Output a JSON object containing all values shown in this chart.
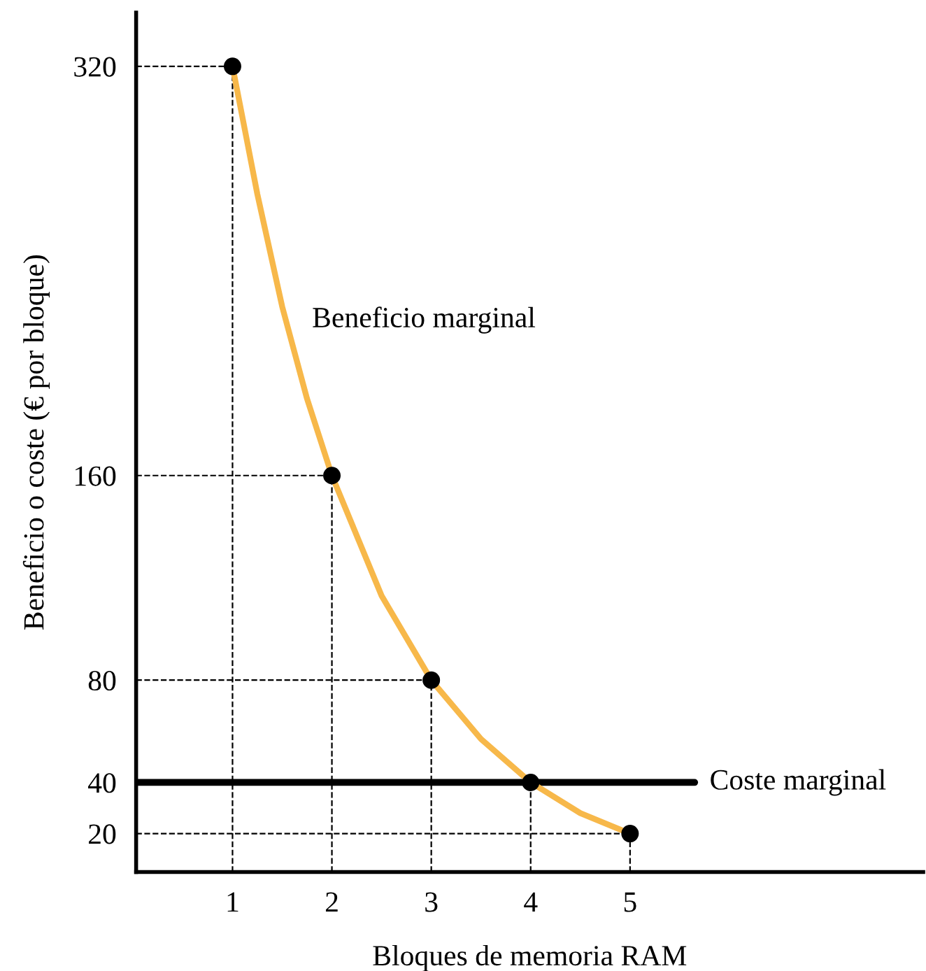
{
  "chart_data": {
    "type": "line",
    "xlabel": "Bloques de memoria RAM",
    "ylabel": "Beneficio o coste (€ por bloque)",
    "x": [
      1,
      2,
      3,
      4,
      5
    ],
    "series": [
      {
        "color": "#000000",
        "x": [
          0.03,
          1
        ],
        "values": [
          320,
          320
        ],
        "line_style": "dashed"
      },
      {
        "color": "#000000",
        "x": [
          0.03,
          2
        ],
        "values": [
          160,
          160
        ],
        "line_style": "dashed"
      },
      {
        "color": "#000000",
        "x": [
          0.03,
          3
        ],
        "values": [
          80,
          80
        ],
        "line_style": "dashed"
      },
      {
        "color": "#000000",
        "x": [
          0.03,
          5
        ],
        "values": [
          20,
          20
        ],
        "line_style": "dashed"
      },
      {
        "color": "#000000",
        "x": [
          1,
          1
        ],
        "values": [
          5,
          320
        ],
        "line_style": "dashed"
      },
      {
        "color": "#000000",
        "x": [
          2,
          2
        ],
        "values": [
          5,
          160
        ],
        "line_style": "dashed"
      },
      {
        "color": "#000000",
        "x": [
          3,
          3
        ],
        "values": [
          5,
          80
        ],
        "line_style": "dashed"
      },
      {
        "color": "#000000",
        "x": [
          4,
          4
        ],
        "values": [
          5,
          40
        ],
        "line_style": "dashed"
      },
      {
        "color": "#000000",
        "x": [
          5,
          5
        ],
        "values": [
          5,
          20
        ],
        "line_style": "dashed"
      },
      {
        "name": "Coste marginal",
        "color": "#000000",
        "x": [
          0.03,
          5.65
        ],
        "values": [
          40,
          40
        ]
      },
      {
        "name": "Beneficio marginal",
        "color": "#f7b84a",
        "x": [
          1,
          1.25,
          1.5,
          1.75,
          2,
          2.5,
          3,
          3.5,
          4,
          4.5,
          5
        ],
        "values": [
          320,
          270,
          226,
          190,
          160,
          113,
          80,
          57,
          40,
          28,
          20
        ]
      },
      {
        "type": "scatter",
        "color": "#000000",
        "values": [
          320,
          160,
          80,
          40,
          20
        ],
        "marker": "circle"
      }
    ],
    "xlim": [
      0.03,
      7.95
    ],
    "ylim": [
      5,
      341
    ],
    "xticks": [
      1,
      2,
      3,
      4,
      5
    ],
    "yticks": [
      20,
      40,
      80,
      160,
      320
    ],
    "legend": false,
    "line_style": "solid"
  }
}
